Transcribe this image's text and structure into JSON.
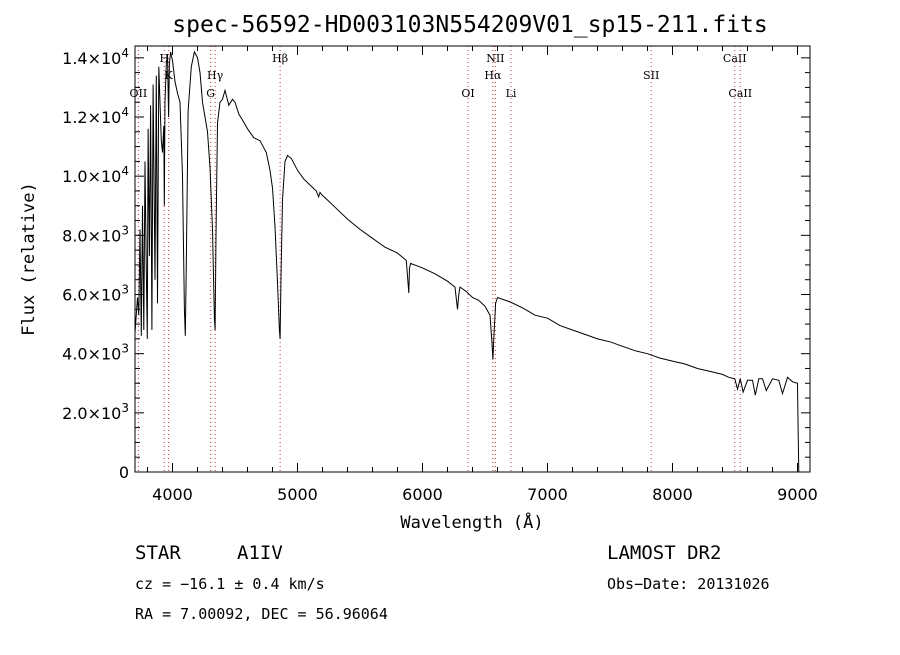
{
  "chart_data": {
    "type": "line",
    "title": "spec-56592-HD003103N554209V01_sp15-211.fits",
    "xlabel": "Wavelength (Å)",
    "ylabel": "Flux (relative)",
    "xlim": [
      3700,
      9100
    ],
    "ylim": [
      0,
      14400
    ],
    "x_ticks": [
      {
        "value": 4000,
        "label": "4000"
      },
      {
        "value": 5000,
        "label": "5000"
      },
      {
        "value": 6000,
        "label": "6000"
      },
      {
        "value": 7000,
        "label": "7000"
      },
      {
        "value": 8000,
        "label": "8000"
      },
      {
        "value": 9000,
        "label": "9000"
      }
    ],
    "y_ticks": [
      {
        "value": 0,
        "label": "0"
      },
      {
        "value": 2000,
        "mant": "2.0",
        "exp": "3"
      },
      {
        "value": 4000,
        "mant": "4.0",
        "exp": "3"
      },
      {
        "value": 6000,
        "mant": "6.0",
        "exp": "3"
      },
      {
        "value": 8000,
        "mant": "8.0",
        "exp": "3"
      },
      {
        "value": 10000,
        "mant": "1.0",
        "exp": "4"
      },
      {
        "value": 12000,
        "mant": "1.2",
        "exp": "4"
      },
      {
        "value": 14000,
        "mant": "1.4",
        "exp": "4"
      }
    ],
    "grid": false,
    "line_color": "#000000",
    "marker_color": "#cc3333",
    "spectral_lines": [
      {
        "label": "OII",
        "wavelength": 3727,
        "row": 3
      },
      {
        "label": "H",
        "wavelength": 3934,
        "row": 1
      },
      {
        "label": "K",
        "wavelength": 3969,
        "row": 2
      },
      {
        "label": "Hγ",
        "wavelength": 4341,
        "row": 2
      },
      {
        "label": "G",
        "wavelength": 4305,
        "row": 3
      },
      {
        "label": "Hβ",
        "wavelength": 4861,
        "row": 1
      },
      {
        "label": "OI",
        "wavelength": 6364,
        "row": 3
      },
      {
        "label": "NII",
        "wavelength": 6583,
        "row": 1
      },
      {
        "label": "Hα",
        "wavelength": 6563,
        "row": 2
      },
      {
        "label": "Li",
        "wavelength": 6708,
        "row": 3
      },
      {
        "label": "SII",
        "wavelength": 7830,
        "row": 2
      },
      {
        "label": "CaII",
        "wavelength": 8498,
        "row": 1
      },
      {
        "label": "CaII",
        "wavelength": 8542,
        "row": 3
      }
    ],
    "series": [
      {
        "x": [
          3700,
          3720,
          3730,
          3740,
          3750,
          3760,
          3770,
          3780,
          3790,
          3798,
          3805,
          3815,
          3825,
          3835,
          3845,
          3860,
          3870,
          3880,
          3890,
          3900,
          3910,
          3920,
          3930,
          3934,
          3940,
          3950,
          3960,
          3969,
          3975,
          3985,
          4000,
          4020,
          4040,
          4060,
          4080,
          4095,
          4102,
          4110,
          4125,
          4150,
          4175,
          4200,
          4220,
          4240,
          4260,
          4280,
          4300,
          4320,
          4335,
          4341,
          4348,
          4360,
          4380,
          4400,
          4420,
          4450,
          4480,
          4500,
          4530,
          4560,
          4600,
          4650,
          4700,
          4750,
          4780,
          4800,
          4820,
          4840,
          4855,
          4861,
          4868,
          4880,
          4900,
          4920,
          4950,
          5000,
          5050,
          5100,
          5150,
          5169,
          5180,
          5200,
          5250,
          5300,
          5400,
          5500,
          5600,
          5700,
          5800,
          5870,
          5890,
          5896,
          5905,
          6000,
          6100,
          6200,
          6260,
          6280,
          6290,
          6300,
          6350,
          6400,
          6450,
          6500,
          6540,
          6555,
          6563,
          6570,
          6585,
          6600,
          6700,
          6800,
          6900,
          7000,
          7100,
          7200,
          7300,
          7400,
          7500,
          7600,
          7700,
          7800,
          7900,
          8000,
          8100,
          8200,
          8300,
          8400,
          8450,
          8498,
          8520,
          8542,
          8565,
          8600,
          8640,
          8662,
          8690,
          8720,
          8750,
          8800,
          8850,
          8880,
          8920,
          8960,
          9000,
          9005,
          9010
        ],
        "y": [
          4700,
          5900,
          5300,
          8200,
          4600,
          9000,
          4800,
          10500,
          6800,
          4500,
          11600,
          7300,
          12400,
          4800,
          13100,
          6500,
          13400,
          5700,
          13700,
          12500,
          11200,
          10800,
          11700,
          9000,
          12500,
          13800,
          14100,
          12000,
          13800,
          14200,
          13900,
          13200,
          12800,
          12500,
          10000,
          5500,
          4600,
          7000,
          12200,
          13700,
          14200,
          14000,
          13500,
          12500,
          12000,
          11500,
          10300,
          8200,
          5200,
          4800,
          8000,
          11800,
          12500,
          12600,
          12900,
          12400,
          12600,
          12500,
          12100,
          11900,
          11600,
          11300,
          11200,
          10800,
          10200,
          9600,
          8300,
          6400,
          4800,
          4500,
          6600,
          9200,
          10500,
          10700,
          10600,
          10200,
          9900,
          9700,
          9500,
          9300,
          9450,
          9350,
          9150,
          8950,
          8550,
          8200,
          7900,
          7600,
          7400,
          7150,
          6050,
          6900,
          7050,
          6900,
          6700,
          6450,
          6250,
          5500,
          6000,
          6250,
          6100,
          5900,
          5800,
          5600,
          5300,
          4400,
          3800,
          4500,
          5700,
          5900,
          5750,
          5550,
          5300,
          5200,
          4950,
          4800,
          4650,
          4500,
          4400,
          4250,
          4100,
          4000,
          3850,
          3750,
          3650,
          3500,
          3400,
          3300,
          3200,
          3150,
          2800,
          3150,
          2700,
          3100,
          3100,
          2600,
          3150,
          3150,
          2750,
          3150,
          3100,
          2650,
          3200,
          3050,
          3000,
          1500,
          0
        ]
      }
    ]
  },
  "footer": {
    "object_type": "STAR",
    "spectral_class": "A1IV",
    "survey": "LAMOST DR2",
    "cz": "cz = −16.1 ± 0.4 km/s",
    "obs_date": "Obs−Date: 20131026",
    "coords": "RA =    7.00092, DEC =   56.96064"
  }
}
